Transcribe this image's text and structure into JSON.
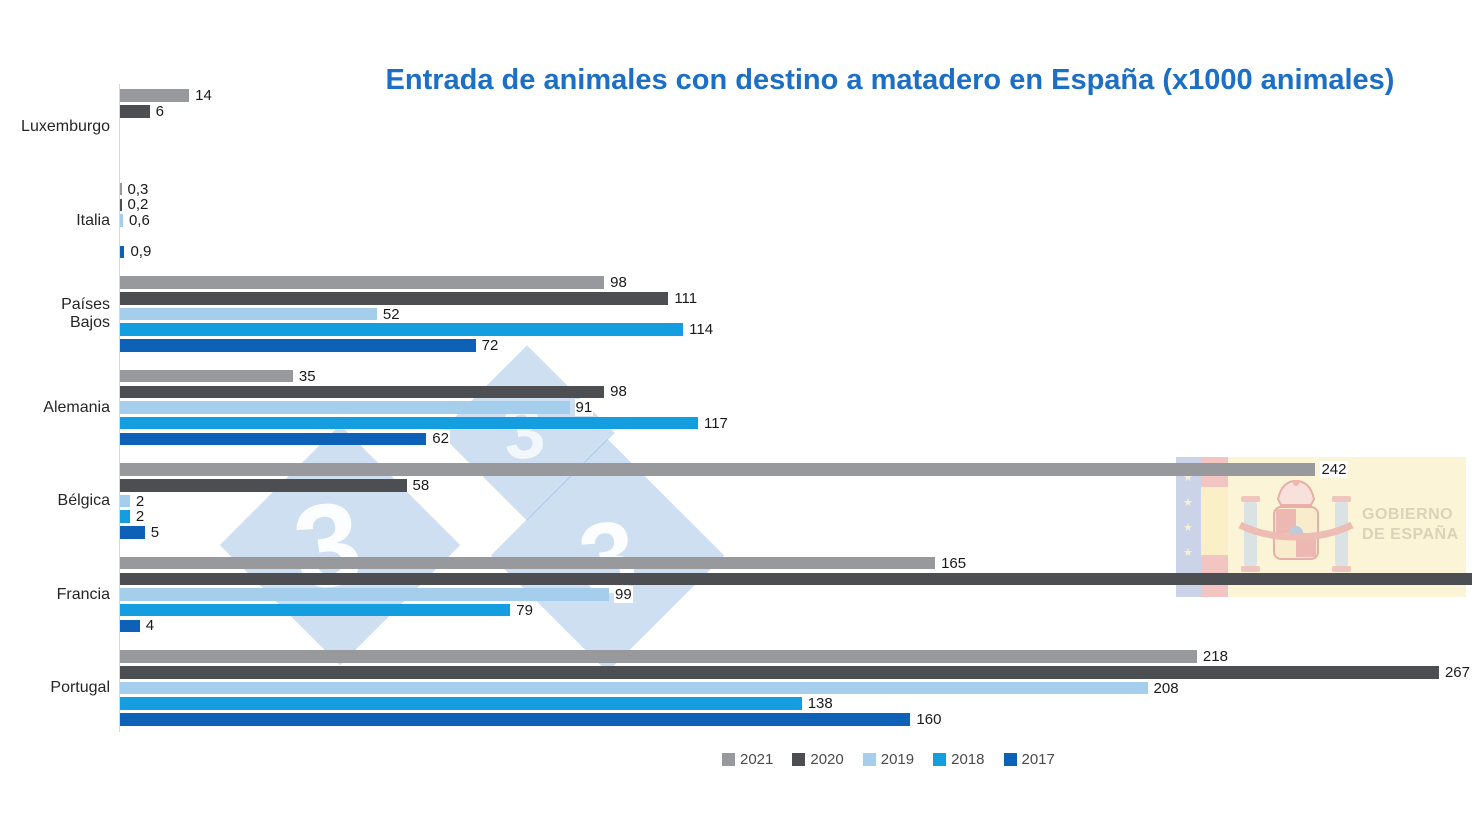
{
  "chart_data": {
    "type": "bar",
    "orientation": "horizontal",
    "title": "Entrada de animales con destino a matadero en España (x1000 animales)",
    "categories": [
      "Luxemburgo",
      "Italia",
      "Países Bajos",
      "Alemania",
      "Bélgica",
      "Francia",
      "Portugal"
    ],
    "series": [
      {
        "name": "2021",
        "color": "#98999c",
        "values": [
          14,
          0.3,
          98,
          35,
          242,
          165,
          218
        ],
        "labels": [
          "14",
          "0,3",
          "98",
          "35",
          "242",
          "165",
          "218"
        ]
      },
      {
        "name": "2020",
        "color": "#4c4e52",
        "values": [
          6,
          0.2,
          111,
          98,
          58,
          null,
          267
        ],
        "labels": [
          "6",
          "0,2",
          "111",
          "98",
          "58",
          "",
          "267"
        ]
      },
      {
        "name": "2019",
        "color": "#a5cdec",
        "values": [
          null,
          0.6,
          52,
          91,
          2,
          99,
          208
        ],
        "labels": [
          "",
          "0,6",
          "52",
          "91",
          "2",
          "99",
          "208"
        ]
      },
      {
        "name": "2018",
        "color": "#149ee0",
        "values": [
          null,
          null,
          114,
          117,
          2,
          79,
          138
        ],
        "labels": [
          "",
          "",
          "114",
          "117",
          "2",
          "79",
          "138"
        ]
      },
      {
        "name": "2017",
        "color": "#0d62b8",
        "values": [
          null,
          0.9,
          72,
          62,
          5,
          4,
          160
        ],
        "labels": [
          "",
          "0,9",
          "72",
          "62",
          "5",
          "4",
          "160"
        ]
      }
    ],
    "clipped_bars": [
      {
        "series": "2020",
        "category": "Francia",
        "note": "bar runs off the right edge of the image; its value label is not visible"
      }
    ],
    "value_labels_shown": true,
    "x_axis": {
      "ticks_visible": false
    },
    "legend": {
      "position": "bottom",
      "entries": [
        "2021",
        "2020",
        "2019",
        "2018",
        "2017"
      ]
    }
  },
  "watermarks": {
    "brand_333": {
      "digits": [
        "3",
        "3",
        "3"
      ],
      "diamond_color": "rgba(124,170,218,0.38)",
      "digit_color": "rgba(255,255,255,0.92)"
    },
    "gobierno_espana": {
      "line1": "GOBIERNO",
      "line2": "DE ESPAÑA"
    }
  },
  "colors": {
    "title": "#1c6fc6",
    "axis_line": "#d9d9d9",
    "value_label": "#1a1a1a",
    "category_label": "#262626",
    "legend_text": "#4a4a4a"
  }
}
